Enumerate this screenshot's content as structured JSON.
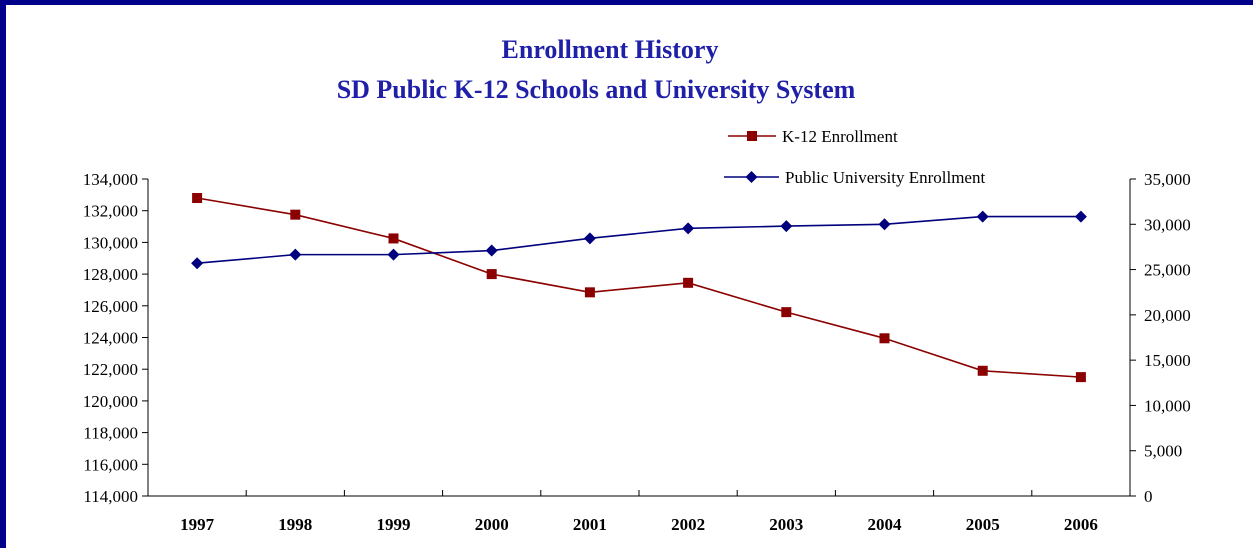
{
  "chart_data": {
    "type": "line",
    "title": "Enrollment History",
    "subtitle": "SD Public K-12 Schools and University System",
    "x": [
      "1997",
      "1998",
      "1999",
      "2000",
      "2001",
      "2002",
      "2003",
      "2004",
      "2005",
      "2006"
    ],
    "series": [
      {
        "name": "K-12 Enrollment",
        "axis": "left",
        "color": "#8b0000",
        "marker": "square",
        "values": [
          132800,
          131750,
          130250,
          128000,
          126850,
          127450,
          125600,
          123950,
          121900,
          121500
        ]
      },
      {
        "name": "Public University Enrollment",
        "axis": "right",
        "color": "#00007f",
        "marker": "diamond",
        "values": [
          25700,
          26650,
          26650,
          27100,
          28450,
          29550,
          29800,
          30000,
          30850,
          30850
        ]
      }
    ],
    "y_left": {
      "min": 114000,
      "max": 134000,
      "step": 2000,
      "ticks": [
        "114,000",
        "116,000",
        "118,000",
        "120,000",
        "122,000",
        "124,000",
        "126,000",
        "128,000",
        "130,000",
        "132,000",
        "134,000"
      ]
    },
    "y_right": {
      "min": 0,
      "max": 35000,
      "step": 5000,
      "ticks": [
        "0",
        "5,000",
        "10,000",
        "15,000",
        "20,000",
        "25,000",
        "30,000",
        "35,000"
      ]
    },
    "xlabel": "",
    "ylabel": "",
    "grid": false,
    "legend": "top-right"
  },
  "colors": {
    "frame": "#00008b",
    "title": "#1f1fa8"
  }
}
